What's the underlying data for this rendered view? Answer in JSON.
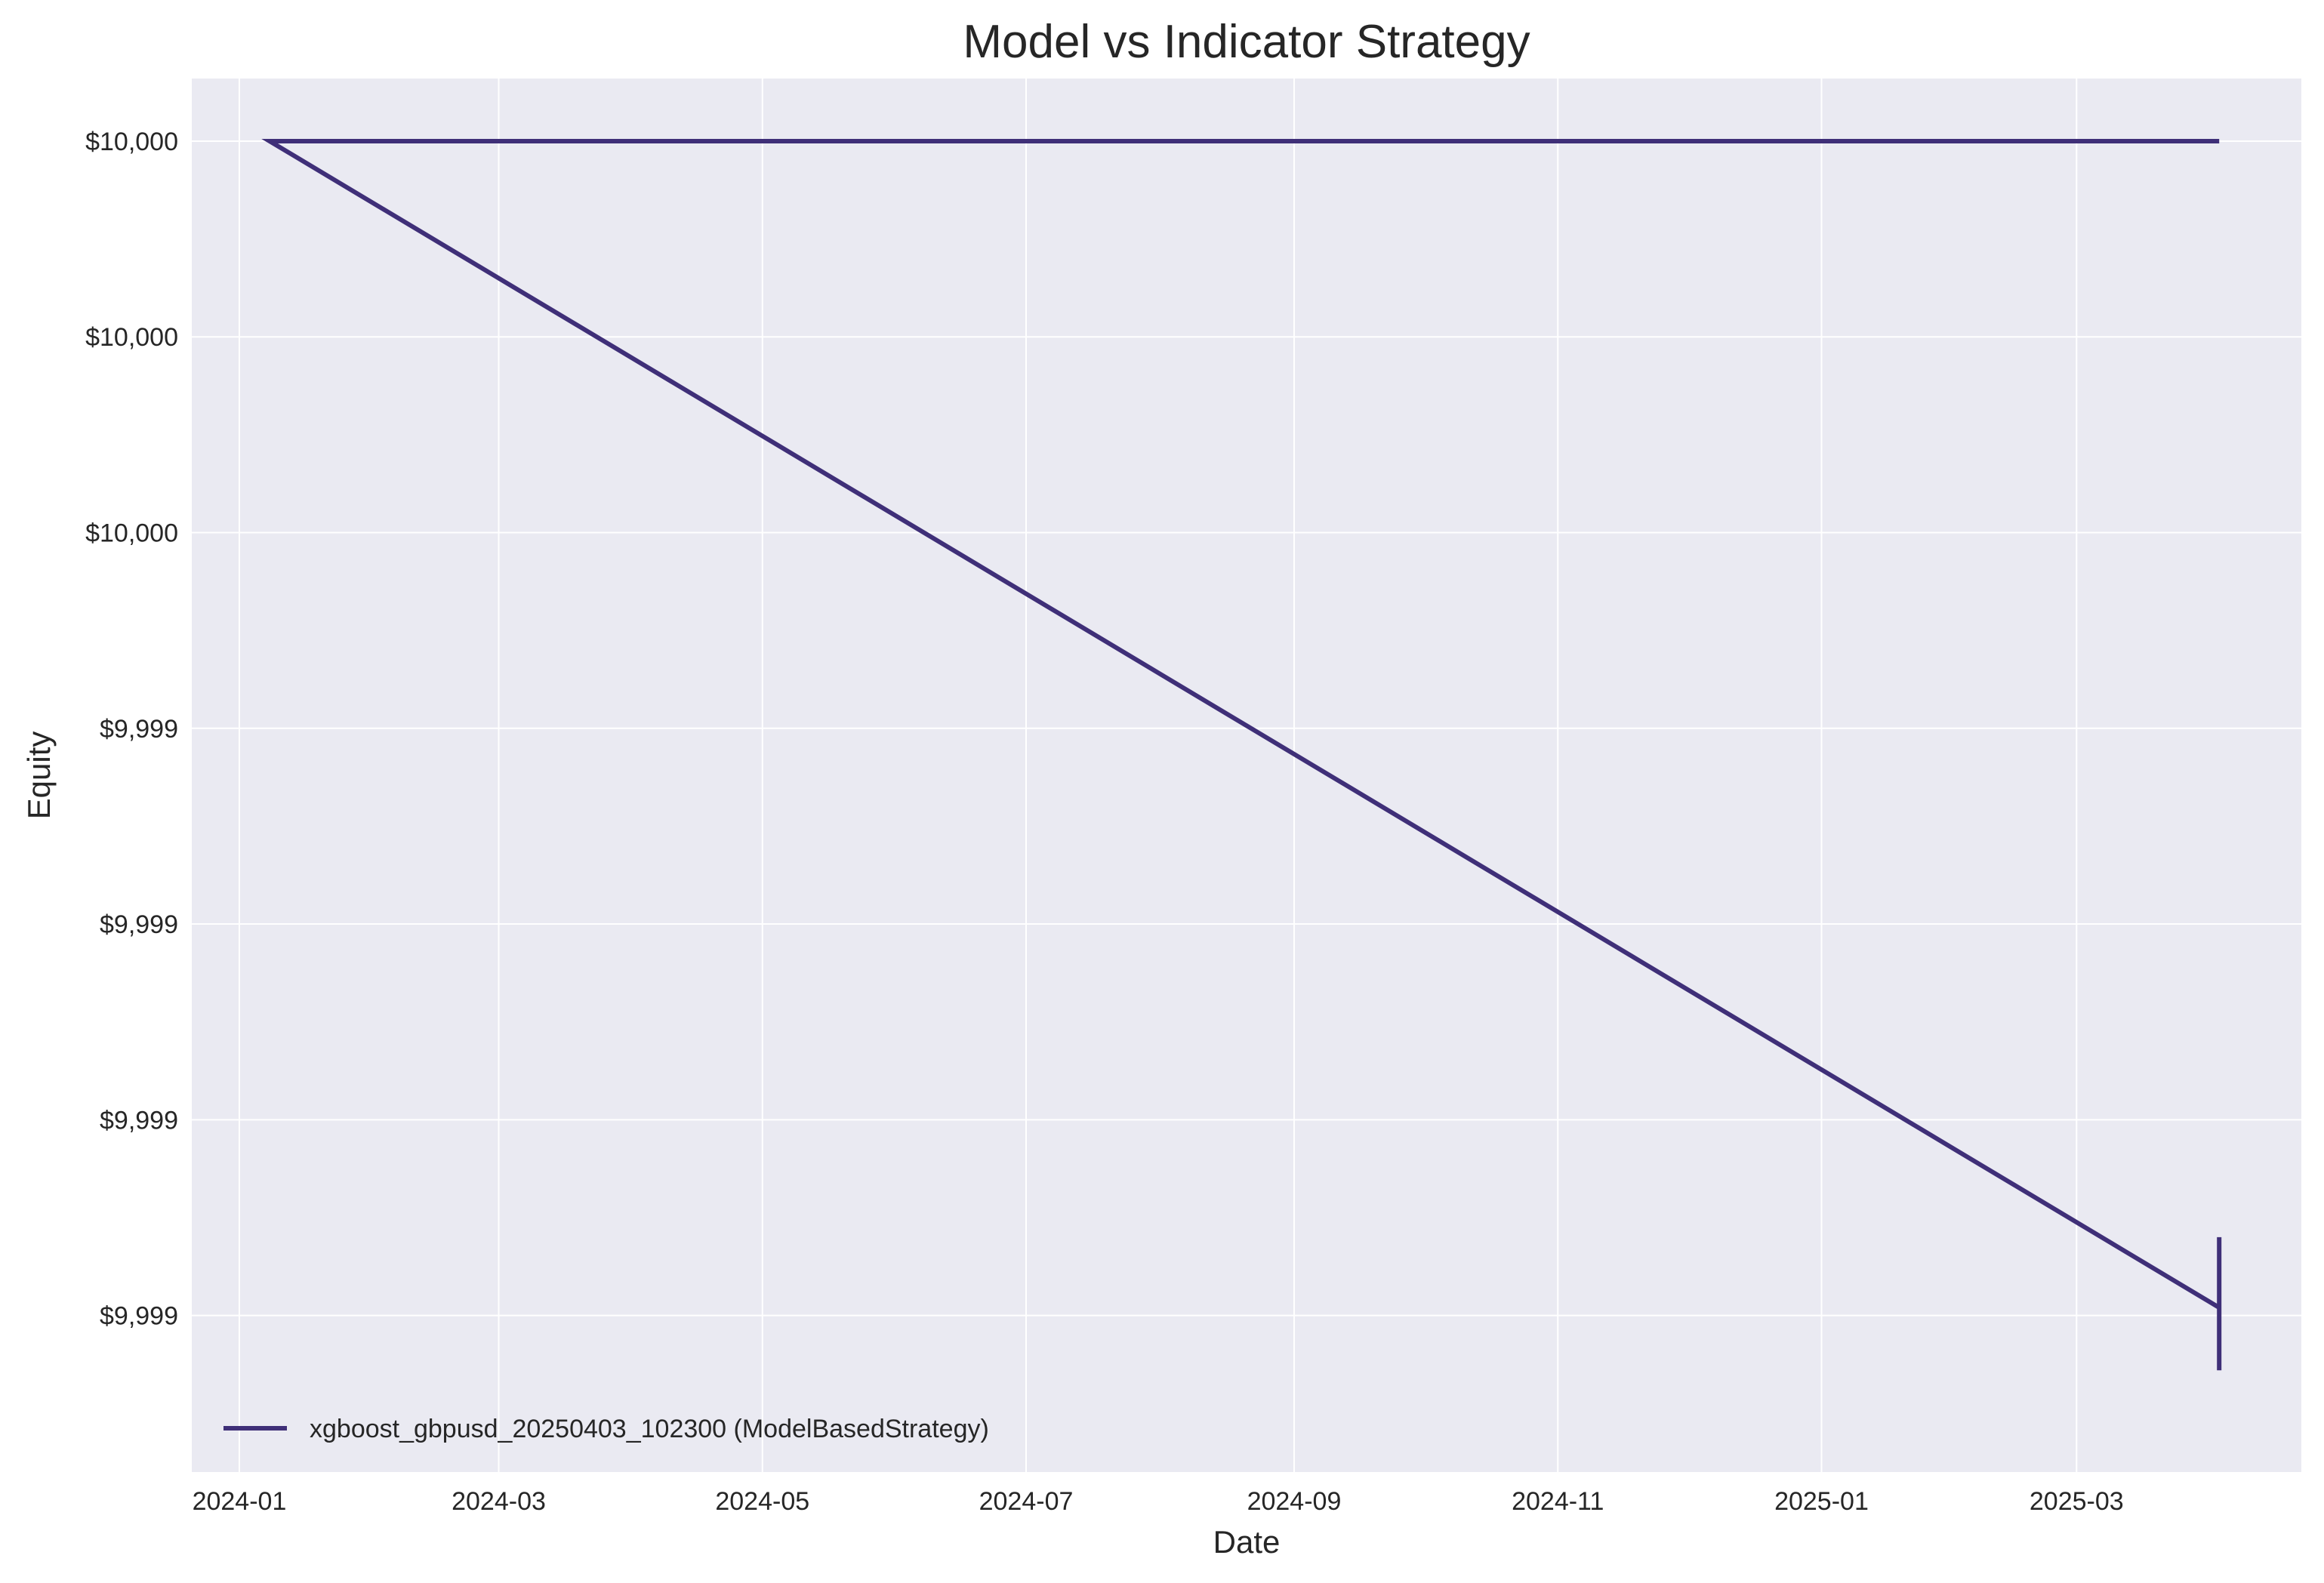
{
  "chart_data": {
    "type": "line",
    "title": "Model vs Indicator Strategy",
    "xlabel": "Date",
    "ylabel": "Equity",
    "x_ticks": [
      "2024-01",
      "2024-03",
      "2024-05",
      "2024-07",
      "2024-09",
      "2024-11",
      "2025-01",
      "2025-03"
    ],
    "y_ticks": [
      "$10,000",
      "$10,000",
      "$10,000",
      "$9,999",
      "$9,999",
      "$9,999",
      "$9,999"
    ],
    "xlim": [
      "2023-12-21",
      "2025-04-22"
    ],
    "ylim": [
      9998.55,
      10000.33
    ],
    "grid": true,
    "legend_position": "lower-left",
    "background_color": "#eaeaf2",
    "series": [
      {
        "name": "xgboost_gbpusd_20250403_102300 (ModelBasedStrategy)",
        "color": "#3f2f78",
        "points": [
          {
            "x": "2024-01-08",
            "y": 10000.25
          },
          {
            "x": "2025-04-03",
            "y": 10000.25
          },
          {
            "x": "2024-01-08",
            "y": 10000.25
          },
          {
            "x": "2025-04-03",
            "y": 9998.76
          },
          {
            "x": "2025-04-03",
            "y": 9998.85
          },
          {
            "x": "2025-04-03",
            "y": 9998.68
          }
        ]
      }
    ]
  }
}
